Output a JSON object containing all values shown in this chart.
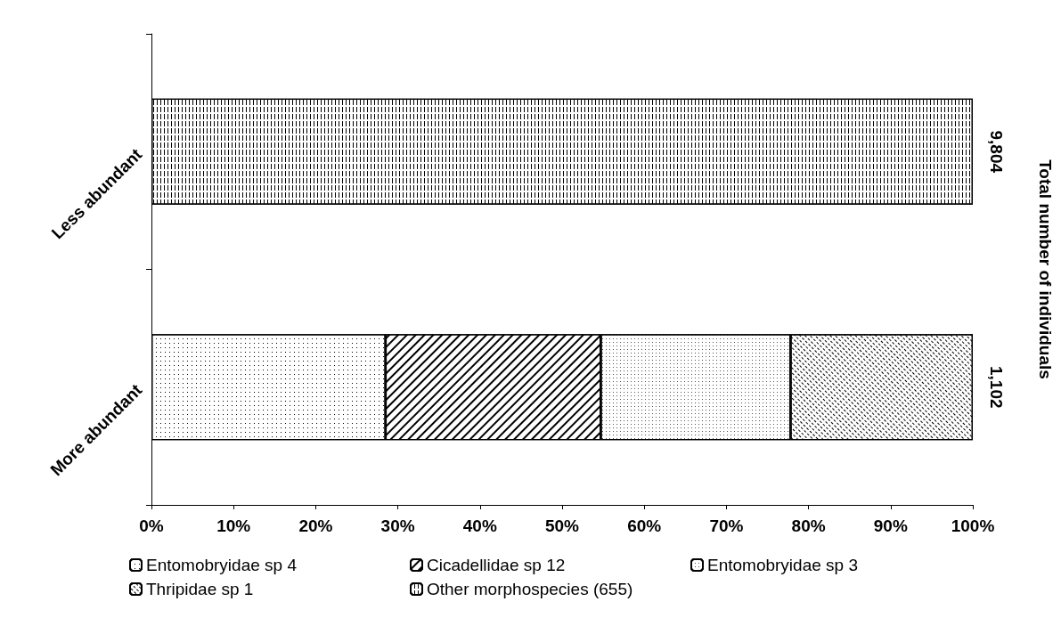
{
  "chart_data": {
    "type": "bar",
    "orientation": "horizontal",
    "stacked": true,
    "categories": [
      "Less abundant",
      "More abundant"
    ],
    "y2label": "Total number of individuals",
    "annotations": [
      {
        "text": "9,804",
        "x": 100,
        "y": "Less abundant"
      },
      {
        "text": "1,102",
        "x": 100,
        "y": "More abundant"
      }
    ],
    "xlim": [
      0,
      100
    ],
    "xticks": [
      {
        "value": 0,
        "label": "0%"
      },
      {
        "value": 10,
        "label": "10%"
      },
      {
        "value": 20,
        "label": "20%"
      },
      {
        "value": 30,
        "label": "30%"
      },
      {
        "value": 40,
        "label": "40%"
      },
      {
        "value": 50,
        "label": "50%"
      },
      {
        "value": 60,
        "label": "60%"
      },
      {
        "value": 70,
        "label": "70%"
      },
      {
        "value": 80,
        "label": "80%"
      },
      {
        "value": 90,
        "label": "90%"
      },
      {
        "value": 100,
        "label": "100%"
      }
    ],
    "grid": false,
    "legend": "bottom",
    "series": [
      {
        "name": "Entomobryidae sp 4",
        "color": "#ffffff",
        "values": [
          null,
          28.5
        ]
      },
      {
        "name": "Cicadellidae sp 12",
        "color": "#ffffff",
        "values": [
          null,
          26.2
        ]
      },
      {
        "name": "Entomobryidae sp 3",
        "color": "#ffffff",
        "values": [
          null,
          23.1
        ]
      },
      {
        "name": "Thripidae sp 1",
        "color": "#ffffff",
        "values": [
          null,
          22.2
        ]
      },
      {
        "name": "Other morphospecies (655)",
        "color": "#ffffff",
        "values": [
          100,
          null
        ]
      }
    ]
  }
}
